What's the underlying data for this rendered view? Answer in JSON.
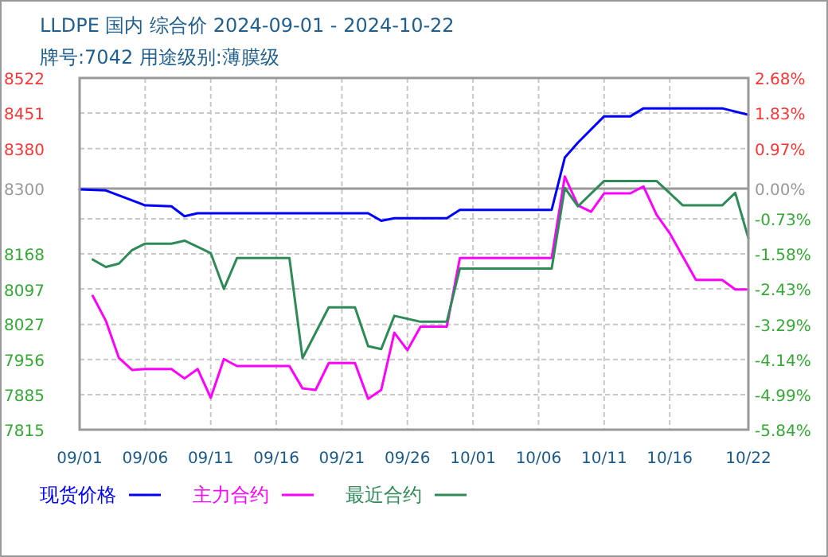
{
  "chart_data": {
    "type": "line",
    "title": "LLDPE 国内 综合价 2024-09-01 - 2024-10-22",
    "subtitle": "牌号:7042 用途级别:薄膜级",
    "xlim": [
      "2024-09-01",
      "2024-10-22"
    ],
    "xticks": [
      {
        "value": "2024-09-01",
        "label": "09/01"
      },
      {
        "value": "2024-09-06",
        "label": "09/06"
      },
      {
        "value": "2024-09-11",
        "label": "09/11"
      },
      {
        "value": "2024-09-16",
        "label": "09/16"
      },
      {
        "value": "2024-09-21",
        "label": "09/21"
      },
      {
        "value": "2024-09-26",
        "label": "09/26"
      },
      {
        "value": "2024-10-01",
        "label": "10/01"
      },
      {
        "value": "2024-10-06",
        "label": "10/06"
      },
      {
        "value": "2024-10-11",
        "label": "10/11"
      },
      {
        "value": "2024-10-16",
        "label": "10/16"
      },
      {
        "value": "2024-10-22",
        "label": "10/22"
      }
    ],
    "ylim": [
      7815,
      8522
    ],
    "yticks": [
      8522,
      8451,
      8380,
      8300,
      8168,
      8097,
      8027,
      7956,
      7885,
      7815
    ],
    "y2lim": [
      -5.84,
      2.68
    ],
    "y2ticks": [
      {
        "value": 2.68,
        "label": "2.68%"
      },
      {
        "value": 1.83,
        "label": "1.83%"
      },
      {
        "value": 0.97,
        "label": "0.97%"
      },
      {
        "value": 0,
        "label": "0.00%"
      },
      {
        "value": -0.73,
        "label": "-0.73%"
      },
      {
        "value": -1.58,
        "label": "-1.58%"
      },
      {
        "value": -2.43,
        "label": "-2.43%"
      },
      {
        "value": -3.29,
        "label": "-3.29%"
      },
      {
        "value": -4.14,
        "label": "-4.14%"
      },
      {
        "value": -4.99,
        "label": "-4.99%"
      },
      {
        "value": -5.84,
        "label": "-5.84%"
      }
    ],
    "grid": true,
    "legend": "bottom",
    "ref_lines": [
      {
        "axis": "y2",
        "value": 0,
        "color": "#999999",
        "line_style": "solid"
      }
    ],
    "series": [
      {
        "name": "现货价格",
        "color": "#0000ff",
        "x": [
          "2024-09-01",
          "2024-09-03",
          "2024-09-06",
          "2024-09-08",
          "2024-09-09",
          "2024-09-10",
          "2024-09-23",
          "2024-09-24",
          "2024-09-25",
          "2024-09-29",
          "2024-09-30",
          "2024-10-07",
          "2024-10-08",
          "2024-10-09",
          "2024-10-11",
          "2024-10-13",
          "2024-10-14",
          "2024-10-20",
          "2024-10-22"
        ],
        "values": [
          8298,
          8296,
          8266,
          8264,
          8244,
          8250,
          8250,
          8235,
          8240,
          8240,
          8257,
          8257,
          8362,
          8392,
          8445,
          8445,
          8461,
          8461,
          8448
        ]
      },
      {
        "name": "主力合约",
        "color": "#ff00ff",
        "x": [
          "2024-09-02",
          "2024-09-03",
          "2024-09-04",
          "2024-09-05",
          "2024-09-06",
          "2024-09-08",
          "2024-09-09",
          "2024-09-10",
          "2024-09-11",
          "2024-09-12",
          "2024-09-13",
          "2024-09-17",
          "2024-09-18",
          "2024-09-19",
          "2024-09-20",
          "2024-09-22",
          "2024-09-23",
          "2024-09-24",
          "2024-09-25",
          "2024-09-26",
          "2024-09-27",
          "2024-09-29",
          "2024-09-30",
          "2024-10-07",
          "2024-10-08",
          "2024-10-09",
          "2024-10-10",
          "2024-10-11",
          "2024-10-13",
          "2024-10-14",
          "2024-10-15",
          "2024-10-16",
          "2024-10-18",
          "2024-10-20",
          "2024-10-21",
          "2024-10-22"
        ],
        "values": [
          8084,
          8034,
          7959,
          7935,
          7937,
          7937,
          7918,
          7937,
          7879,
          7957,
          7943,
          7943,
          7898,
          7895,
          7949,
          7949,
          7877,
          7895,
          8010,
          7975,
          8022,
          8022,
          8160,
          8160,
          8324,
          8266,
          8253,
          8290,
          8290,
          8304,
          8247,
          8210,
          8116,
          8116,
          8097,
          8097
        ]
      },
      {
        "name": "最近合约",
        "color": "#2e8b57",
        "x": [
          "2024-09-02",
          "2024-09-03",
          "2024-09-04",
          "2024-09-05",
          "2024-09-06",
          "2024-09-08",
          "2024-09-09",
          "2024-09-11",
          "2024-09-12",
          "2024-09-13",
          "2024-09-17",
          "2024-09-18",
          "2024-09-20",
          "2024-09-22",
          "2024-09-23",
          "2024-09-24",
          "2024-09-25",
          "2024-09-27",
          "2024-09-29",
          "2024-09-30",
          "2024-10-07",
          "2024-10-08",
          "2024-10-09",
          "2024-10-11",
          "2024-10-15",
          "2024-10-17",
          "2024-10-20",
          "2024-10-21",
          "2024-10-22"
        ],
        "values": [
          8157,
          8142,
          8149,
          8176,
          8189,
          8189,
          8195,
          8170,
          8098,
          8160,
          8160,
          7959,
          8061,
          8061,
          7983,
          7977,
          8044,
          8032,
          8032,
          8139,
          8139,
          8301,
          8264,
          8315,
          8315,
          8266,
          8266,
          8291,
          8200
        ]
      }
    ]
  }
}
